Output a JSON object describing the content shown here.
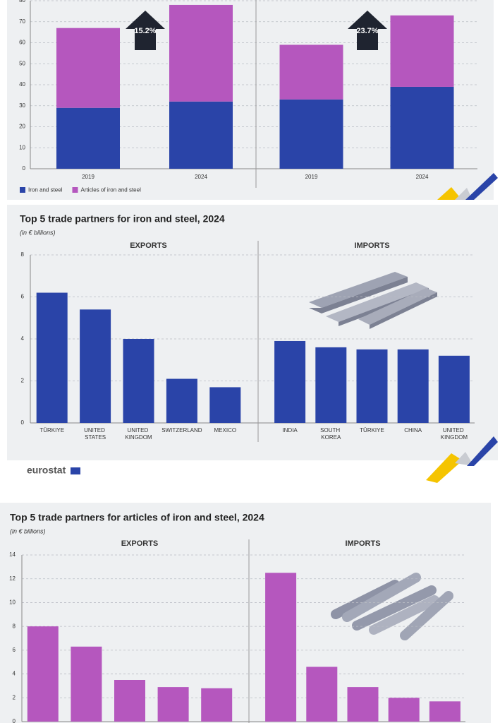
{
  "chart_data": [
    {
      "type": "stacked_bar",
      "categories": [
        "2019",
        "2024",
        "2019",
        "2024"
      ],
      "series": [
        {
          "name": "Iron and steel",
          "color": "#2a44a8",
          "values": [
            29,
            32,
            33,
            39
          ]
        },
        {
          "name": "Articles of iron and steel",
          "color": "#b557be",
          "values": [
            38,
            46,
            26,
            34
          ]
        }
      ],
      "annotations": [
        "15.2%",
        "23.7%"
      ],
      "ylim": [
        0,
        80
      ],
      "yticks": [
        0,
        10,
        20,
        30,
        40,
        50,
        60,
        70,
        80
      ],
      "grid": true
    },
    {
      "type": "bar",
      "title": "Top 5 trade partners for iron and steel, 2024",
      "subtitle": "(in € billions)",
      "color": "#2a44a8",
      "panels": [
        {
          "label": "EXPORTS",
          "categories": [
            "TÜRKIYE",
            "UNITED STATES",
            "UNITED KINGDOM",
            "SWITZERLAND",
            "MEXICO"
          ],
          "values": [
            6.2,
            5.4,
            4.0,
            2.1,
            1.7
          ]
        },
        {
          "label": "IMPORTS",
          "categories": [
            "INDIA",
            "SOUTH KOREA",
            "TÜRKIYE",
            "CHINA",
            "UNITED KINGDOM"
          ],
          "values": [
            3.9,
            3.6,
            3.5,
            3.5,
            3.2
          ]
        }
      ],
      "ylim": [
        0,
        8
      ],
      "yticks": [
        0,
        2,
        4,
        6,
        8
      ],
      "grid": true
    },
    {
      "type": "bar",
      "title": "Top 5 trade partners for articles of iron and steel, 2024",
      "subtitle": "(in € billions)",
      "color": "#b557be",
      "panels": [
        {
          "label": "EXPORTS",
          "categories": [
            null,
            null,
            null,
            null,
            null
          ],
          "values": [
            8.0,
            6.3,
            3.5,
            2.9,
            2.8
          ]
        },
        {
          "label": "IMPORTS",
          "categories": [
            null,
            null,
            null,
            null,
            null
          ],
          "values": [
            12.5,
            4.6,
            2.9,
            2.0,
            1.7
          ]
        }
      ],
      "ylim": [
        0,
        14
      ],
      "yticks": [
        0,
        2,
        4,
        6,
        8,
        10,
        12,
        14
      ],
      "grid": true
    }
  ],
  "footer": {
    "logo": "eurostat"
  }
}
